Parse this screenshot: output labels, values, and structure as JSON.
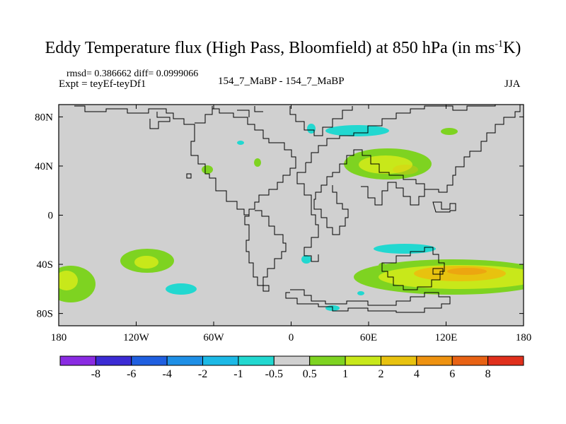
{
  "title": {
    "main": "Eddy Temperature flux (High Pass, Bloomfield) at 850 hPa (in ms",
    "sup": "-1",
    "tail": "K)"
  },
  "header": {
    "stats": "rmsd= 0.386662 diff= 0.0999066",
    "expt": "Expt = teyEf-teyDf1",
    "center": "154_7_MaBP - 154_7_MaBP",
    "season": "JJA"
  },
  "map": {
    "background_color": "#d0d0d0",
    "lon_ticks": [
      "180",
      "120W",
      "60W",
      "0",
      "60E",
      "120E",
      "180"
    ],
    "lat_ticks": [
      "80N",
      "40N",
      "0",
      "40S",
      "80S"
    ],
    "fields": [
      {
        "lon": -103,
        "lat": -38,
        "value": 2
      },
      {
        "lon": -165,
        "lat": -55,
        "value": 2
      },
      {
        "lon": 80,
        "lat": 34,
        "value": 2
      },
      {
        "lon": 130,
        "lat": -47,
        "value": 4
      },
      {
        "lon": 160,
        "lat": -53,
        "value": 2
      },
      {
        "lon": 65,
        "lat": 62,
        "value": -1
      },
      {
        "lon": 80,
        "lat": -30,
        "value": -1
      },
      {
        "lon": -80,
        "lat": -62,
        "value": -1
      }
    ]
  },
  "colorbar": {
    "labels": [
      "-8",
      "-6",
      "-4",
      "-2",
      "-1",
      "-0.5",
      "0.5",
      "1",
      "2",
      "4",
      "6",
      "8"
    ],
    "colors": [
      "#8a2be2",
      "#3c2bd4",
      "#1f5fe0",
      "#1e8fe6",
      "#1cb9e6",
      "#22d8d0",
      "#d0d0d0",
      "#7ed321",
      "#c8e81a",
      "#e8c20f",
      "#ee9210",
      "#e86214",
      "#e0301c"
    ]
  }
}
